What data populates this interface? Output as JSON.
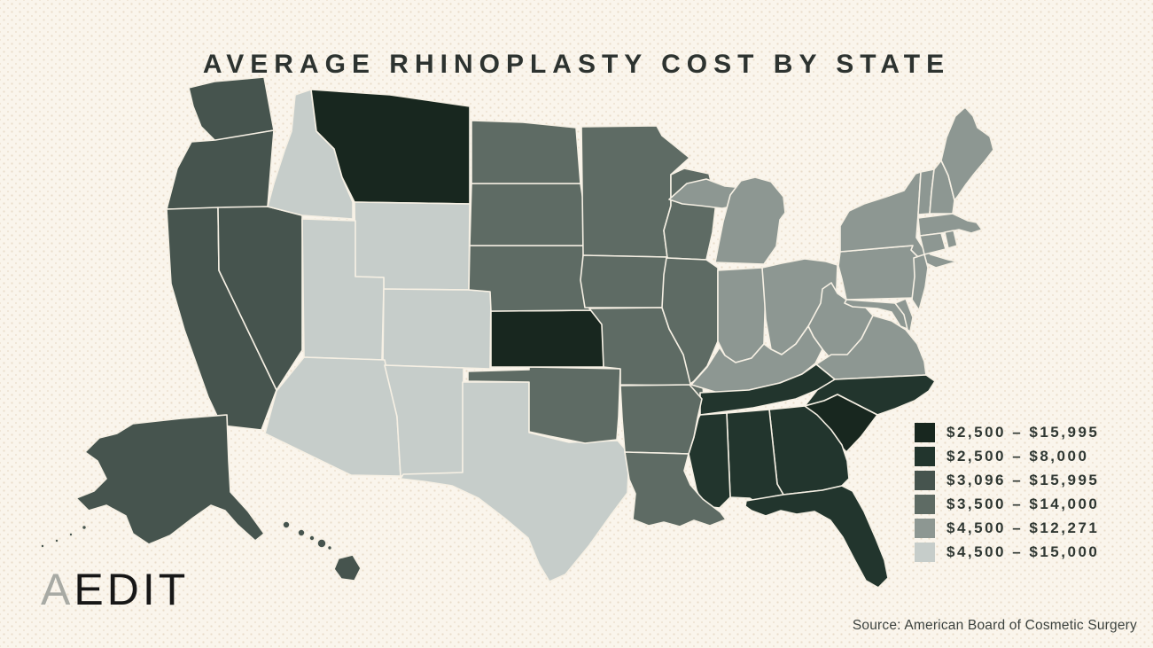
{
  "page": {
    "background_color": "#faf5ec",
    "dot_color": "#e9dcc9"
  },
  "title": "AVERAGE RHINOPLASTY COST BY STATE",
  "logo": {
    "first_letter": "A",
    "rest": "EDIT",
    "first_letter_color": "#a8aaa4",
    "rest_color": "#171717"
  },
  "source_note": "Source: American Board of Cosmetic Surgery",
  "map": {
    "border_color": "#f6f0e4"
  },
  "chart_data": {
    "type": "heatmap",
    "subtype": "us-state-choropleth",
    "title": "AVERAGE RHINOPLASTY COST BY STATE",
    "legend_position": "right",
    "source": "Source: American Board of Cosmetic Surgery",
    "categories": [
      {
        "label": "$2,500 – $15,995",
        "color": "#18271f",
        "states": [
          "MT",
          "KS",
          "SC"
        ]
      },
      {
        "label": "$2,500 – $8,000",
        "color": "#22352d",
        "states": [
          "TN",
          "NC",
          "MS",
          "AL",
          "GA",
          "FL"
        ]
      },
      {
        "label": "$3,096 – $15,995",
        "color": "#46544e",
        "states": [
          "WA",
          "OR",
          "CA",
          "NV",
          "AK",
          "HI"
        ]
      },
      {
        "label": "$3,500 – $14,000",
        "color": "#5e6b64",
        "states": [
          "ND",
          "SD",
          "NE",
          "MN",
          "IA",
          "WI",
          "IL",
          "MO",
          "OK",
          "AR",
          "LA"
        ]
      },
      {
        "label": "$4,500 – $12,271",
        "color": "#8d9792",
        "states": [
          "MI",
          "IN",
          "OH",
          "KY",
          "WV",
          "VA",
          "MD",
          "DE",
          "PA",
          "NY",
          "NJ",
          "CT",
          "RI",
          "MA",
          "VT",
          "NH",
          "ME"
        ]
      },
      {
        "label": "$4,500 – $15,000",
        "color": "#c6cdca",
        "states": [
          "ID",
          "WY",
          "UT",
          "CO",
          "AZ",
          "NM",
          "TX"
        ]
      }
    ]
  }
}
